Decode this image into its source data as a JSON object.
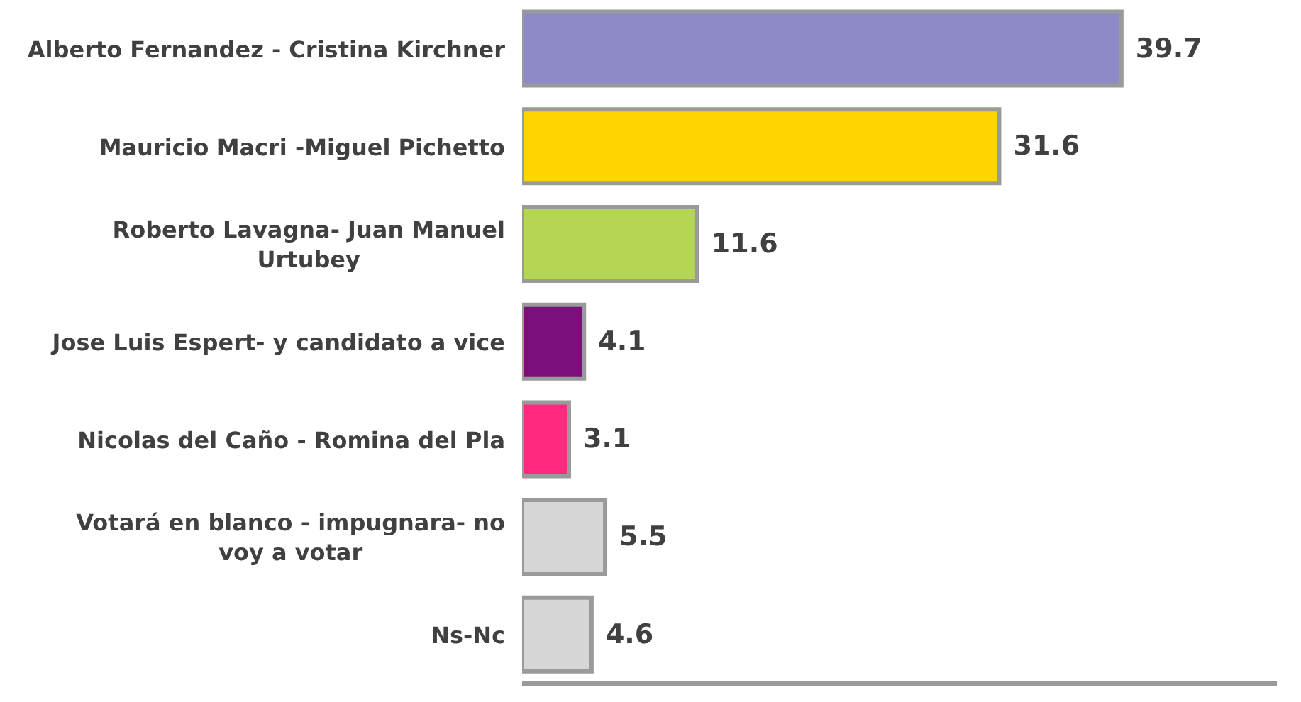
{
  "chart_data": {
    "type": "bar",
    "orientation": "horizontal",
    "categories": [
      "Alberto Fernandez - Cristina Kirchner",
      "Mauricio Macri -Miguel Pichetto",
      "Roberto Lavagna- Juan Manuel Urtubey",
      "Jose Luis Espert- y candidato a vice",
      "Nicolas del Caño - Romina del Pla",
      "Votará en blanco - impugnara- no voy a votar",
      "Ns-Nc"
    ],
    "values": [
      39.7,
      31.6,
      11.6,
      4.1,
      3.1,
      5.5,
      4.6
    ],
    "colors": [
      "#8e8ac8",
      "#ffd500",
      "#b5d654",
      "#7b0f7b",
      "#ff2a80",
      "#d6d6d6",
      "#d6d6d6"
    ],
    "xlim": [
      0,
      50
    ],
    "tick_labels": "y",
    "data_labels": true
  }
}
